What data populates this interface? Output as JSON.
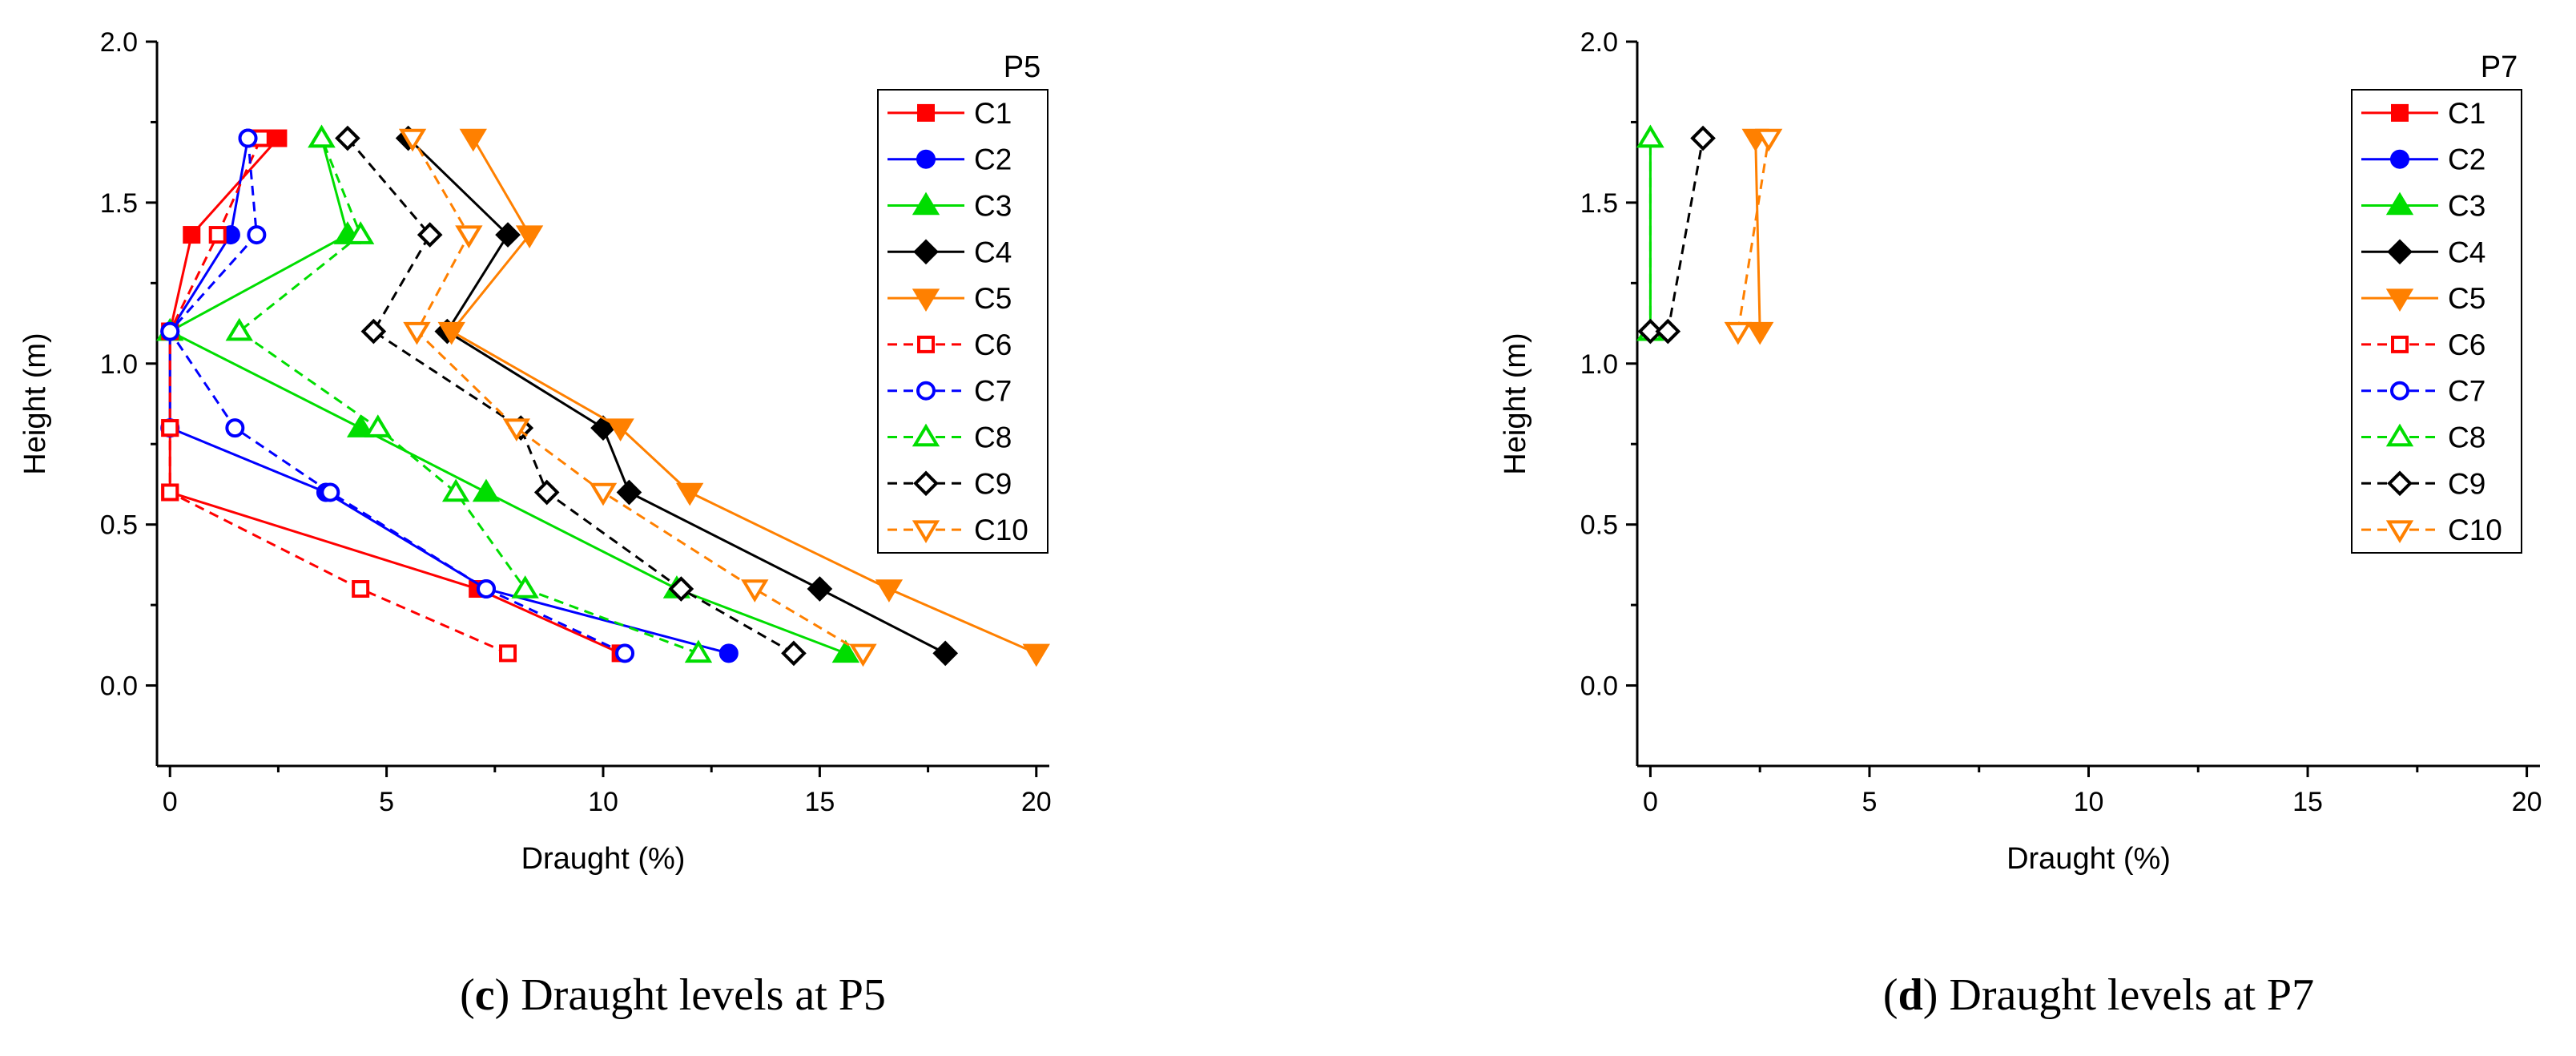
{
  "colors": {
    "C1": "#ff0000",
    "C2": "#0000ff",
    "C3": "#00dd00",
    "C4": "#000000",
    "C5": "#ff8000",
    "C6": "#ff0000",
    "C7": "#0000ff",
    "C8": "#00dd00",
    "C9": "#000000",
    "C10": "#ff8000"
  },
  "chart_data": [
    {
      "type": "line",
      "panel_title": "P5",
      "xlabel": "Draught (%)",
      "ylabel": "Height (m)",
      "xlim": [
        -0.3,
        20.3
      ],
      "ylim": [
        -0.25,
        2.0
      ],
      "xticks": [
        0,
        5,
        10,
        15,
        20
      ],
      "yticks": [
        0.0,
        0.5,
        1.0,
        1.5,
        2.0
      ],
      "xtick_labels": [
        "0",
        "5",
        "10",
        "15",
        "20"
      ],
      "ytick_labels": [
        "0.0",
        "0.5",
        "1.0",
        "1.5",
        "2.0"
      ],
      "legend_position": "top-right",
      "caption_letter": "c",
      "caption_text": " Draught levels at P5",
      "series": [
        {
          "name": "C1",
          "marker": "square",
          "filled": true,
          "dashed": false,
          "x": [
            10.4,
            7.1,
            0.0,
            0.0,
            0.0,
            0.5,
            2.5
          ],
          "y": [
            0.1,
            0.3,
            0.6,
            0.8,
            1.1,
            1.4,
            1.7
          ]
        },
        {
          "name": "C2",
          "marker": "circle",
          "filled": true,
          "dashed": false,
          "x": [
            12.9,
            7.3,
            3.6,
            0.0,
            0.0,
            1.4,
            1.8
          ],
          "y": [
            0.1,
            0.3,
            0.6,
            0.8,
            1.1,
            1.4,
            1.7
          ]
        },
        {
          "name": "C3",
          "marker": "triangle-up",
          "filled": true,
          "dashed": false,
          "x": [
            15.6,
            11.7,
            7.3,
            4.4,
            0.0,
            4.1,
            3.5
          ],
          "y": [
            0.1,
            0.3,
            0.6,
            0.8,
            1.1,
            1.4,
            1.7
          ]
        },
        {
          "name": "C4",
          "marker": "diamond",
          "filled": true,
          "dashed": false,
          "x": [
            17.9,
            15.0,
            10.6,
            10.0,
            6.4,
            7.8,
            5.5
          ],
          "y": [
            0.1,
            0.3,
            0.6,
            0.8,
            1.1,
            1.4,
            1.7
          ]
        },
        {
          "name": "C5",
          "marker": "triangle-down",
          "filled": true,
          "dashed": false,
          "x": [
            20.0,
            16.6,
            12.0,
            10.4,
            6.5,
            8.3,
            7.0
          ],
          "y": [
            0.1,
            0.3,
            0.6,
            0.8,
            1.1,
            1.4,
            1.7
          ]
        },
        {
          "name": "C6",
          "marker": "square",
          "filled": false,
          "dashed": true,
          "x": [
            7.8,
            4.4,
            0.0,
            0.0,
            0.0,
            1.1,
            2.1
          ],
          "y": [
            0.1,
            0.3,
            0.6,
            0.8,
            1.1,
            1.4,
            1.7
          ]
        },
        {
          "name": "C7",
          "marker": "circle",
          "filled": false,
          "dashed": true,
          "x": [
            10.5,
            7.3,
            3.7,
            1.5,
            0.0,
            2.0,
            1.8
          ],
          "y": [
            0.1,
            0.3,
            0.6,
            0.8,
            1.1,
            1.4,
            1.7
          ]
        },
        {
          "name": "C8",
          "marker": "triangle-up",
          "filled": false,
          "dashed": true,
          "x": [
            12.2,
            8.2,
            6.6,
            4.8,
            1.6,
            4.4,
            3.5
          ],
          "y": [
            0.1,
            0.3,
            0.6,
            0.8,
            1.1,
            1.4,
            1.7
          ]
        },
        {
          "name": "C9",
          "marker": "diamond",
          "filled": false,
          "dashed": true,
          "x": [
            14.4,
            11.8,
            8.7,
            8.1,
            4.7,
            6.0,
            4.1
          ],
          "y": [
            0.1,
            0.3,
            0.6,
            0.8,
            1.1,
            1.4,
            1.7
          ]
        },
        {
          "name": "C10",
          "marker": "triangle-down",
          "filled": false,
          "dashed": true,
          "x": [
            16.0,
            13.5,
            10.0,
            8.0,
            5.7,
            6.9,
            5.6
          ],
          "y": [
            0.1,
            0.3,
            0.6,
            0.8,
            1.1,
            1.4,
            1.7
          ]
        }
      ]
    },
    {
      "type": "line",
      "panel_title": "P7",
      "xlabel": "Draught (%)",
      "ylabel": "Height (m)",
      "xlim": [
        -0.3,
        20.3
      ],
      "ylim": [
        -0.25,
        2.0
      ],
      "xticks": [
        0,
        5,
        10,
        15,
        20
      ],
      "yticks": [
        0.0,
        0.5,
        1.0,
        1.5,
        2.0
      ],
      "xtick_labels": [
        "0",
        "5",
        "10",
        "15",
        "20"
      ],
      "ytick_labels": [
        "0.0",
        "0.5",
        "1.0",
        "1.5",
        "2.0"
      ],
      "legend_position": "top-right",
      "caption_letter": "d",
      "caption_text": " Draught levels at P7",
      "series": [
        {
          "name": "C1",
          "marker": "square",
          "filled": true,
          "dashed": false,
          "x": [],
          "y": []
        },
        {
          "name": "C2",
          "marker": "circle",
          "filled": true,
          "dashed": false,
          "x": [],
          "y": []
        },
        {
          "name": "C3",
          "marker": "triangle-up",
          "filled": true,
          "dashed": false,
          "x": [
            0.0,
            0.0
          ],
          "y": [
            1.1,
            1.7
          ]
        },
        {
          "name": "C4",
          "marker": "diamond",
          "filled": true,
          "dashed": false,
          "x": [],
          "y": []
        },
        {
          "name": "C5",
          "marker": "triangle-down",
          "filled": true,
          "dashed": false,
          "x": [
            2.5,
            2.4
          ],
          "y": [
            1.1,
            1.7
          ]
        },
        {
          "name": "C6",
          "marker": "square",
          "filled": false,
          "dashed": true,
          "x": [],
          "y": []
        },
        {
          "name": "C7",
          "marker": "circle",
          "filled": false,
          "dashed": true,
          "x": [],
          "y": []
        },
        {
          "name": "C8",
          "marker": "triangle-up",
          "filled": false,
          "dashed": true,
          "x": [
            0.0,
            0.0
          ],
          "y": [
            1.1,
            1.7
          ]
        },
        {
          "name": "C9",
          "marker": "diamond",
          "filled": false,
          "dashed": true,
          "x": [
            0.0,
            0.4,
            1.2
          ],
          "y": [
            1.1,
            1.1,
            1.7
          ]
        },
        {
          "name": "C10",
          "marker": "triangle-down",
          "filled": false,
          "dashed": true,
          "x": [
            2.0,
            2.7
          ],
          "y": [
            1.1,
            1.7
          ]
        }
      ]
    }
  ]
}
